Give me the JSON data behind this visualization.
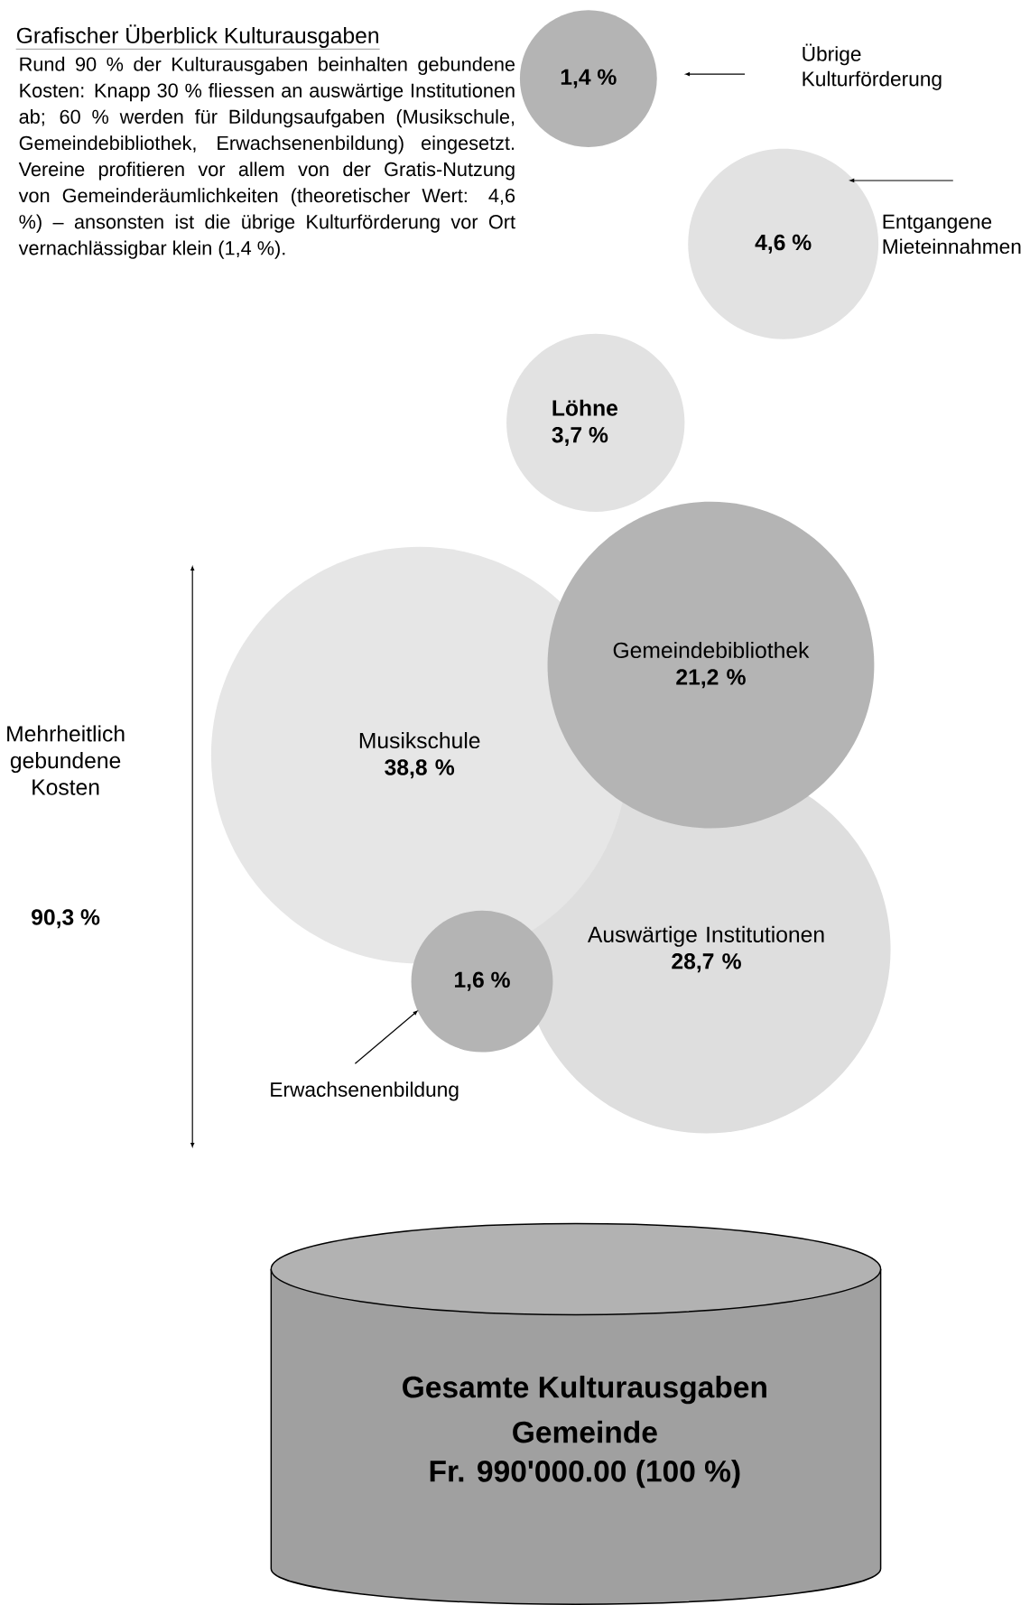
{
  "chart_data": {
    "type": "other",
    "title": "Grafischer Überblick Kulturausgaben",
    "categories": [
      "Übrige Kulturförderung",
      "Entgangene Mieteinnahmen",
      "Löhne",
      "Auswärtige Institutionen",
      "Musikschule",
      "Gemeindebibliothek",
      "Erwachsenenbildung"
    ],
    "values": [
      1.4,
      4.6,
      3.7,
      28.7,
      38.8,
      21.2,
      1.6
    ],
    "value_labels": [
      "1,4 %",
      "4,6 %",
      "3,7 %",
      "28,7 %",
      "38,8 %",
      "21,2 %",
      "1,6 %"
    ],
    "colors": [
      "#b4b4b4",
      "#e2e2e2",
      "#e2e2e2",
      "#dedede",
      "#e6e6e6",
      "#b4b4b4",
      "#b4b4b4"
    ],
    "annotations": [
      "Rund 90 % der Kulturausgaben beinhalten gebundene Kosten: Knapp 30 % fliessen an auswärtige Institutionen ab; 60 % werden für Bildungsaufgaben (Musikschule, Gemeindebibliothek, Erwachsenenbildung) eingesetzt. Vereine profitieren vor allem von der Gratis-Nutzung von Gemeinderäumlichkeiten (theoretischer Wert: 4,6 %) – ansonsten ist die übrige Kulturförderung vor Ort vernachlässigbar klein (1,4 %).",
      "Mehrheitlich gebundene Kosten",
      "90,3 %",
      "Gesamte Kulturausgaben",
      "Gemeinde",
      "Fr. 990'000.00 (100 %)"
    ]
  }
}
